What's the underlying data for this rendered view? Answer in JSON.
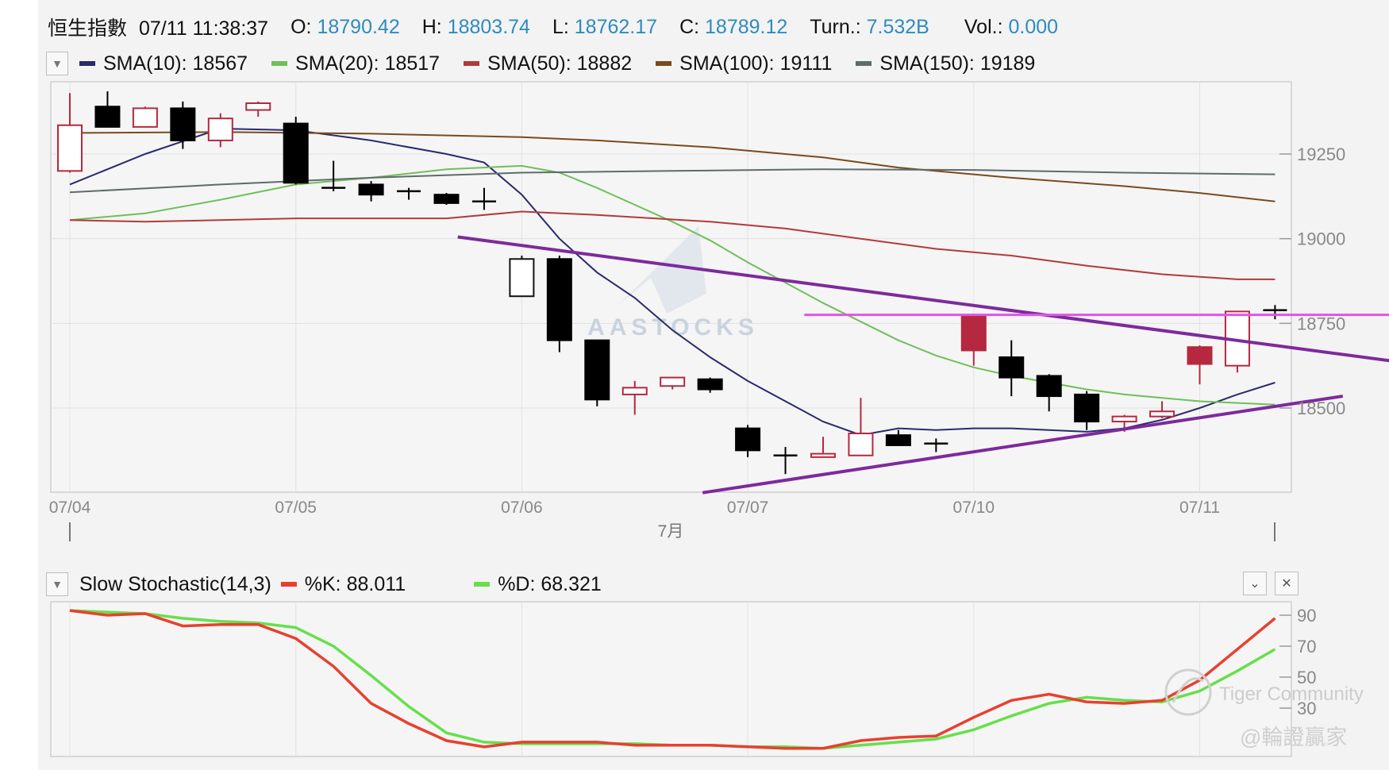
{
  "header": {
    "symbol": "恒生指數",
    "datetime": "07/11 11:38:37",
    "open_label": "O:",
    "open": "18790.42",
    "high_label": "H:",
    "high": "18803.74",
    "low_label": "L:",
    "low": "18762.17",
    "close_label": "C:",
    "close": "18789.12",
    "turn_label": "Turn.:",
    "turn": "7.532B",
    "vol_label": "Vol.:",
    "vol": "0.000"
  },
  "sma_legend": [
    {
      "label": "SMA(10): 18567",
      "color": "#2a2a6e"
    },
    {
      "label": "SMA(20): 18517",
      "color": "#6fbf5a"
    },
    {
      "label": "SMA(50): 18882",
      "color": "#b23a3a"
    },
    {
      "label": "SMA(100): 19111",
      "color": "#7a4a1e"
    },
    {
      "label": "SMA(150): 19189",
      "color": "#5f6b6b"
    }
  ],
  "stoch_legend": {
    "title": "Slow Stochastic(14,3)",
    "k_label": "%K: 88.011",
    "k_color": "#e8402f",
    "d_label": "%D: 68.321",
    "d_color": "#66e04a"
  },
  "watermarks": {
    "aastocks": "AASTOCKS",
    "community": "Tiger Community",
    "author": "@輪證贏家"
  },
  "icons": {
    "dropdown": "▼",
    "collapse": "⌄",
    "close": "✕"
  },
  "chart_data": [
    {
      "type": "candlestick",
      "title": "恒生指數",
      "x_tick_labels": [
        "07/04",
        "07/05",
        "07/06",
        "07/07",
        "07/10",
        "07/11"
      ],
      "x_sub_label": "7月",
      "y_tick_labels": [
        "19250",
        "19000",
        "18750",
        "18500"
      ],
      "ylim": [
        18250,
        19465
      ],
      "colors": {
        "up": "#b5283f",
        "down": "#000000",
        "up_hollow_border": "#b5283f"
      },
      "candles": [
        {
          "i": 0,
          "o": 19200,
          "h": 19430,
          "l": 19195,
          "c": 19335,
          "style": "hollow"
        },
        {
          "i": 1,
          "o": 19390,
          "h": 19435,
          "l": 19330,
          "c": 19330,
          "style": "down"
        },
        {
          "i": 2,
          "o": 19330,
          "h": 19390,
          "l": 19330,
          "c": 19385,
          "style": "hollow"
        },
        {
          "i": 3,
          "o": 19385,
          "h": 19405,
          "l": 19265,
          "c": 19290,
          "style": "down"
        },
        {
          "i": 4,
          "o": 19290,
          "h": 19370,
          "l": 19270,
          "c": 19355,
          "style": "hollow"
        },
        {
          "i": 5,
          "o": 19380,
          "h": 19405,
          "l": 19360,
          "c": 19400,
          "style": "hollow"
        },
        {
          "i": 6,
          "o": 19340,
          "h": 19360,
          "l": 19160,
          "c": 19165,
          "style": "down"
        },
        {
          "i": 7,
          "o": 19165,
          "h": 19230,
          "l": 19140,
          "c": 19150,
          "style": "cross"
        },
        {
          "i": 8,
          "o": 19160,
          "h": 19170,
          "l": 19110,
          "c": 19130,
          "style": "down"
        },
        {
          "i": 9,
          "o": 19140,
          "h": 19150,
          "l": 19115,
          "c": 19140,
          "style": "cross"
        },
        {
          "i": 10,
          "o": 19130,
          "h": 19135,
          "l": 19100,
          "c": 19105,
          "style": "down"
        },
        {
          "i": 11,
          "o": 19110,
          "h": 19150,
          "l": 19085,
          "c": 19110,
          "style": "cross"
        },
        {
          "i": 12,
          "o": 18830,
          "h": 18950,
          "l": 18830,
          "c": 18940,
          "style": "hollow"
        },
        {
          "i": 13,
          "o": 18940,
          "h": 18950,
          "l": 18665,
          "c": 18700,
          "style": "down"
        },
        {
          "i": 14,
          "o": 18700,
          "h": 18700,
          "l": 18505,
          "c": 18525,
          "style": "down"
        },
        {
          "i": 15,
          "o": 18540,
          "h": 18580,
          "l": 18480,
          "c": 18560,
          "style": "hollow"
        },
        {
          "i": 16,
          "o": 18565,
          "h": 18590,
          "l": 18555,
          "c": 18590,
          "style": "hollow"
        },
        {
          "i": 17,
          "o": 18585,
          "h": 18590,
          "l": 18545,
          "c": 18555,
          "style": "down"
        },
        {
          "i": 18,
          "o": 18440,
          "h": 18450,
          "l": 18355,
          "c": 18375,
          "style": "down"
        },
        {
          "i": 19,
          "o": 18365,
          "h": 18385,
          "l": 18305,
          "c": 18360,
          "style": "cross"
        },
        {
          "i": 20,
          "o": 18355,
          "h": 18415,
          "l": 18355,
          "c": 18365,
          "style": "hollow"
        },
        {
          "i": 21,
          "o": 18360,
          "h": 18530,
          "l": 18360,
          "c": 18425,
          "style": "hollow"
        },
        {
          "i": 22,
          "o": 18420,
          "h": 18435,
          "l": 18390,
          "c": 18390,
          "style": "down"
        },
        {
          "i": 23,
          "o": 18395,
          "h": 18410,
          "l": 18370,
          "c": 18395,
          "style": "cross"
        },
        {
          "i": 24,
          "o": 18670,
          "h": 18775,
          "l": 18625,
          "c": 18770,
          "style": "up"
        },
        {
          "i": 25,
          "o": 18650,
          "h": 18700,
          "l": 18535,
          "c": 18590,
          "style": "down"
        },
        {
          "i": 26,
          "o": 18595,
          "h": 18600,
          "l": 18490,
          "c": 18535,
          "style": "down"
        },
        {
          "i": 27,
          "o": 18540,
          "h": 18550,
          "l": 18435,
          "c": 18460,
          "style": "down"
        },
        {
          "i": 28,
          "o": 18460,
          "h": 18480,
          "l": 18430,
          "c": 18475,
          "style": "hollow"
        },
        {
          "i": 29,
          "o": 18475,
          "h": 18520,
          "l": 18470,
          "c": 18490,
          "style": "hollow"
        },
        {
          "i": 30,
          "o": 18630,
          "h": 18685,
          "l": 18570,
          "c": 18680,
          "style": "up"
        },
        {
          "i": 31,
          "o": 18625,
          "h": 18785,
          "l": 18605,
          "c": 18785,
          "style": "hollow"
        },
        {
          "i": 32,
          "o": 18790,
          "h": 18804,
          "l": 18762,
          "c": 18789,
          "style": "cross"
        }
      ],
      "sma_series": [
        {
          "name": "SMA(10)",
          "color": "#2a2a6e",
          "points": [
            [
              0,
              19160
            ],
            [
              2,
              19250
            ],
            [
              4,
              19325
            ],
            [
              6,
              19320
            ],
            [
              8,
              19290
            ],
            [
              10,
              19250
            ],
            [
              11,
              19225
            ],
            [
              12,
              19130
            ],
            [
              13,
              19000
            ],
            [
              14,
              18900
            ],
            [
              15,
              18825
            ],
            [
              16,
              18730
            ],
            [
              17,
              18650
            ],
            [
              18,
              18580
            ],
            [
              19,
              18520
            ],
            [
              20,
              18460
            ],
            [
              21,
              18420
            ],
            [
              22,
              18440
            ],
            [
              23,
              18435
            ],
            [
              24,
              18440
            ],
            [
              25,
              18440
            ],
            [
              26,
              18435
            ],
            [
              27,
              18430
            ],
            [
              28,
              18440
            ],
            [
              29,
              18465
            ],
            [
              30,
              18500
            ],
            [
              31,
              18540
            ],
            [
              32,
              18575
            ]
          ]
        },
        {
          "name": "SMA(20)",
          "color": "#6fbf5a",
          "points": [
            [
              0,
              19055
            ],
            [
              2,
              19075
            ],
            [
              4,
              19115
            ],
            [
              6,
              19160
            ],
            [
              8,
              19180
            ],
            [
              10,
              19205
            ],
            [
              12,
              19215
            ],
            [
              13,
              19195
            ],
            [
              14,
              19150
            ],
            [
              15,
              19100
            ],
            [
              16,
              19050
            ],
            [
              17,
              18995
            ],
            [
              18,
              18930
            ],
            [
              19,
              18870
            ],
            [
              20,
              18810
            ],
            [
              21,
              18755
            ],
            [
              22,
              18700
            ],
            [
              23,
              18655
            ],
            [
              24,
              18620
            ],
            [
              25,
              18595
            ],
            [
              26,
              18575
            ],
            [
              27,
              18555
            ],
            [
              28,
              18540
            ],
            [
              29,
              18530
            ],
            [
              30,
              18520
            ],
            [
              31,
              18515
            ],
            [
              32,
              18510
            ]
          ]
        },
        {
          "name": "SMA(50)",
          "color": "#b23a3a",
          "points": [
            [
              0,
              19055
            ],
            [
              2,
              19050
            ],
            [
              6,
              19060
            ],
            [
              10,
              19060
            ],
            [
              12,
              19080
            ],
            [
              14,
              19070
            ],
            [
              17,
              19050
            ],
            [
              19,
              19030
            ],
            [
              21,
              19000
            ],
            [
              23,
              18970
            ],
            [
              25,
              18950
            ],
            [
              27,
              18920
            ],
            [
              29,
              18895
            ],
            [
              31,
              18880
            ],
            [
              32,
              18880
            ]
          ]
        },
        {
          "name": "SMA(100)",
          "color": "#7a4a1e",
          "points": [
            [
              0,
              19312
            ],
            [
              4,
              19315
            ],
            [
              8,
              19310
            ],
            [
              12,
              19300
            ],
            [
              14,
              19290
            ],
            [
              17,
              19270
            ],
            [
              20,
              19240
            ],
            [
              22,
              19210
            ],
            [
              25,
              19180
            ],
            [
              28,
              19155
            ],
            [
              30,
              19135
            ],
            [
              32,
              19110
            ]
          ]
        },
        {
          "name": "SMA(150)",
          "color": "#5f6b6b",
          "points": [
            [
              0,
              19137
            ],
            [
              4,
              19160
            ],
            [
              8,
              19180
            ],
            [
              12,
              19195
            ],
            [
              16,
              19200
            ],
            [
              20,
              19205
            ],
            [
              24,
              19203
            ],
            [
              28,
              19195
            ],
            [
              32,
              19190
            ]
          ]
        }
      ],
      "annotation_lines": [
        {
          "name": "upper-trendline",
          "color": "#7d2a9c",
          "from": [
            10.3,
            19005
          ],
          "to": [
            35.7,
            18630
          ]
        },
        {
          "name": "lower-trendline",
          "color": "#7d2a9c",
          "from": [
            16.8,
            18250
          ],
          "to": [
            33.8,
            18535
          ]
        },
        {
          "name": "resistance-line",
          "color": "#e055e6",
          "from": [
            19.5,
            18775
          ],
          "to": [
            35.7,
            18775
          ]
        }
      ]
    },
    {
      "type": "line",
      "title": "Slow Stochastic(14,3)",
      "y_tick_labels": [
        "90",
        "70",
        "50",
        "30"
      ],
      "ylim": [
        0,
        100
      ],
      "series": [
        {
          "name": "%K",
          "color": "#e8402f",
          "values": [
            [
              0,
              93
            ],
            [
              1,
              90
            ],
            [
              2,
              91
            ],
            [
              3,
              83
            ],
            [
              4,
              84
            ],
            [
              5,
              84
            ],
            [
              6,
              75
            ],
            [
              7,
              57
            ],
            [
              8,
              33
            ],
            [
              9,
              20
            ],
            [
              10,
              9
            ],
            [
              11,
              5
            ],
            [
              12,
              8
            ],
            [
              13,
              8
            ],
            [
              14,
              8
            ],
            [
              15,
              6
            ],
            [
              16,
              6
            ],
            [
              17,
              6
            ],
            [
              18,
              5
            ],
            [
              19,
              4
            ],
            [
              20,
              4
            ],
            [
              21,
              9
            ],
            [
              22,
              11
            ],
            [
              23,
              12
            ],
            [
              24,
              24
            ],
            [
              25,
              35
            ],
            [
              26,
              39
            ],
            [
              27,
              34
            ],
            [
              28,
              33
            ],
            [
              29,
              35
            ],
            [
              30,
              48
            ],
            [
              31,
              68
            ],
            [
              32,
              88
            ]
          ]
        },
        {
          "name": "%D",
          "color": "#66e04a",
          "values": [
            [
              0,
              93
            ],
            [
              1,
              92
            ],
            [
              2,
              91
            ],
            [
              3,
              88
            ],
            [
              4,
              86
            ],
            [
              5,
              85
            ],
            [
              6,
              82
            ],
            [
              7,
              70
            ],
            [
              8,
              51
            ],
            [
              9,
              31
            ],
            [
              10,
              14
            ],
            [
              11,
              8
            ],
            [
              12,
              7
            ],
            [
              13,
              7
            ],
            [
              14,
              7
            ],
            [
              15,
              7
            ],
            [
              16,
              6
            ],
            [
              17,
              6
            ],
            [
              18,
              5
            ],
            [
              19,
              5
            ],
            [
              20,
              4
            ],
            [
              21,
              6
            ],
            [
              22,
              8
            ],
            [
              23,
              10
            ],
            [
              24,
              16
            ],
            [
              25,
              25
            ],
            [
              26,
              33
            ],
            [
              27,
              37
            ],
            [
              28,
              35
            ],
            [
              29,
              34
            ],
            [
              30,
              41
            ],
            [
              31,
              54
            ],
            [
              32,
              68
            ]
          ]
        }
      ]
    }
  ]
}
